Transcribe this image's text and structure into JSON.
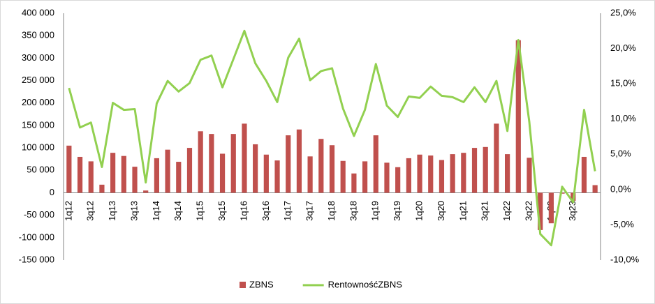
{
  "chart_data": {
    "type": "bar",
    "categories": [
      "1q12",
      null,
      "3q12",
      null,
      "1q13",
      null,
      "3q13",
      null,
      "1q14",
      null,
      "3q14",
      null,
      "1q15",
      null,
      "3q15",
      null,
      "1q16",
      null,
      "3q16",
      null,
      "1q17",
      null,
      "3q17",
      null,
      "1q18",
      null,
      "3q18",
      null,
      "1q19",
      null,
      "3q19",
      null,
      "1q20",
      null,
      "3q20",
      null,
      "1q21",
      null,
      "3q21",
      null,
      "1q22",
      null,
      "3q22",
      null,
      "1q23",
      null,
      "3q23",
      null,
      null
    ],
    "series": [
      {
        "name": "ZBNS",
        "type": "bar",
        "color": "#c0504d",
        "values": [
          105000,
          80000,
          70000,
          18000,
          89000,
          82000,
          58000,
          5000,
          77000,
          96000,
          69000,
          100000,
          137000,
          131000,
          87000,
          131000,
          154000,
          108000,
          85000,
          72000,
          128000,
          141000,
          81000,
          120000,
          106000,
          71000,
          43000,
          70000,
          128000,
          67000,
          57000,
          77000,
          85000,
          83000,
          73000,
          86000,
          89000,
          100000,
          102000,
          154000,
          86000,
          340000,
          78000,
          -83000,
          -68000,
          -2000,
          -18000,
          80000,
          17000
        ]
      },
      {
        "name": "RentownośćZBNS",
        "type": "line",
        "axis": "y2",
        "color": "#92d050",
        "values": [
          14.4,
          8.8,
          9.5,
          3.2,
          12.3,
          11.3,
          11.4,
          1.0,
          12.2,
          15.4,
          13.9,
          15.1,
          18.4,
          19.0,
          14.5,
          18.5,
          22.5,
          17.9,
          15.4,
          12.4,
          18.7,
          21.4,
          15.5,
          16.8,
          17.2,
          11.5,
          7.6,
          11.3,
          17.8,
          11.9,
          10.3,
          13.2,
          13.0,
          14.6,
          13.3,
          13.1,
          12.4,
          14.5,
          12.4,
          15.4,
          8.3,
          21.2,
          9.6,
          -6.3,
          -7.9,
          0.4,
          -1.8,
          11.3,
          2.6
        ]
      }
    ],
    "ylim": [
      -150000,
      400000
    ],
    "yticks": [
      {
        "value": -150000,
        "label": "-150 000"
      },
      {
        "value": -100000,
        "label": "-100 000"
      },
      {
        "value": -50000,
        "label": "-50 000"
      },
      0,
      {
        "value": 50000,
        "label": "50 000"
      },
      {
        "value": 100000,
        "label": "100 000"
      },
      {
        "value": 150000,
        "label": "150 000"
      },
      {
        "value": 200000,
        "label": "200 000"
      },
      {
        "value": 250000,
        "label": "250 000"
      },
      {
        "value": 300000,
        "label": "300 000"
      },
      {
        "value": 350000,
        "label": "350 000"
      },
      {
        "value": 400000,
        "label": "400 000"
      }
    ],
    "y2lim": [
      -10,
      25
    ],
    "y2ticks": [
      {
        "value": -10,
        "label": "-10,0%"
      },
      {
        "value": -5,
        "label": "-5,0%"
      },
      {
        "value": 0,
        "label": "0,0%"
      },
      {
        "value": 5,
        "label": "5,0%"
      },
      {
        "value": 10,
        "label": "10,0%"
      },
      {
        "value": 15,
        "label": "15,0%"
      },
      {
        "value": 20,
        "label": "20,0%"
      },
      {
        "value": 25,
        "label": "25,0%"
      }
    ],
    "legend": "bottom"
  }
}
